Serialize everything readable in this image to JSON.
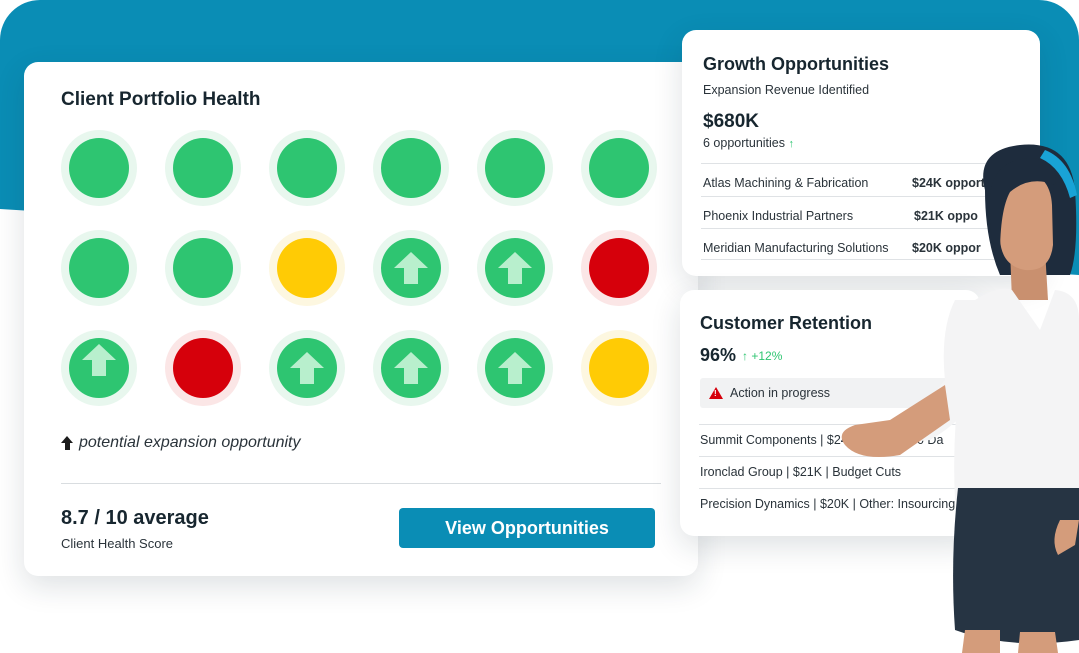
{
  "portfolio": {
    "title": "Client Portfolio Health",
    "grid": [
      [
        "green",
        "green",
        "green",
        "green",
        "green",
        "green"
      ],
      [
        "green",
        "green",
        "yellow",
        "green-up",
        "green-up",
        "red"
      ],
      [
        "green-up-high",
        "red",
        "green-up",
        "green-up",
        "green-up",
        "yellow"
      ]
    ],
    "legend": "potential expansion opportunity",
    "score": "8.7 / 10 average",
    "score_label": "Client Health Score",
    "button_label": "View Opportunities",
    "colors": {
      "green": "#2ec571",
      "yellow": "#ffcb05",
      "red": "#d6000b",
      "accent": "#0a8db5"
    }
  },
  "growth": {
    "title": "Growth Opportunities",
    "subtitle": "Expansion Revenue Identified",
    "amount": "$680K",
    "count": "6 opportunities",
    "up_glyph": "↑",
    "rows": [
      {
        "name": "Atlas Machining & Fabrication",
        "value": "$24K opport"
      },
      {
        "name": "Phoenix Industrial Partners",
        "value": "$21K oppo"
      },
      {
        "name": "Meridian Manufacturing Solutions",
        "value": "$20K oppor"
      }
    ]
  },
  "retention": {
    "title": "Customer Retention",
    "percent": "96%",
    "change": "↑ +12%",
    "action": "Action in progress",
    "rows": [
      "Summit Components | $24K | QBR in 90 Da",
      "Ironclad Group | $21K | Budget Cuts",
      "Precision Dynamics | $20K | Other: Insourcing"
    ]
  }
}
